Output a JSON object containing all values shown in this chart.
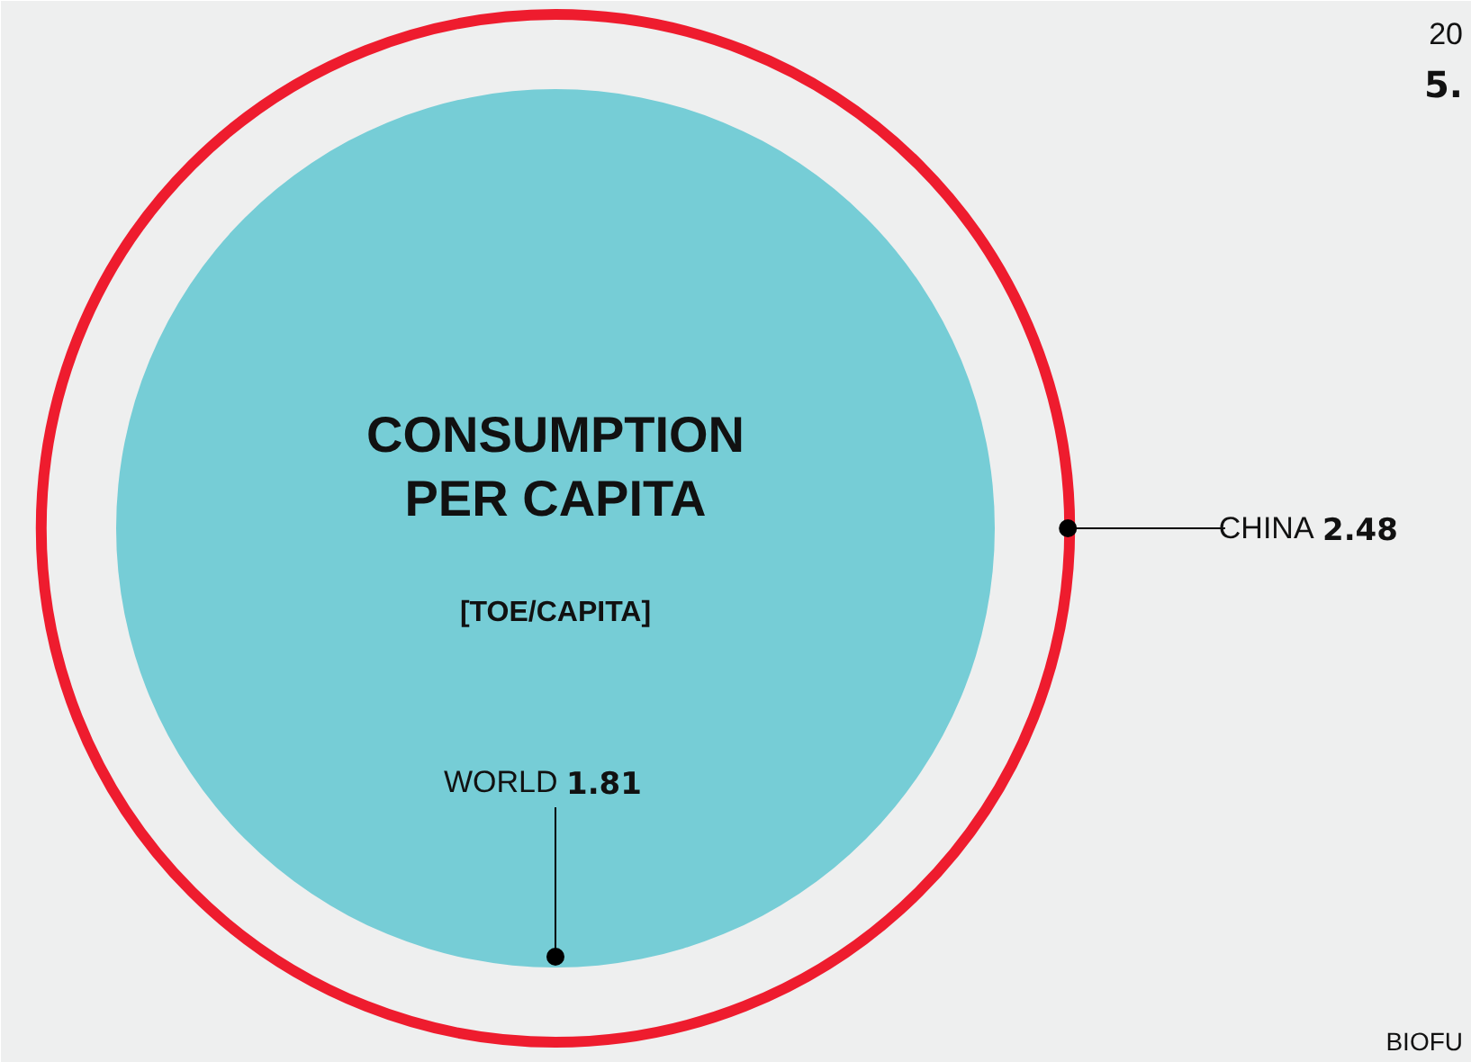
{
  "chart_data": {
    "type": "other",
    "title": "CONSUMPTION PER CAPITA",
    "subtitle": "[TOE/CAPITA]",
    "categories": [
      "WORLD",
      "CHINA"
    ],
    "values": [
      1.81,
      2.48
    ],
    "colors": [
      "#76cdd6",
      "#ee1c2e"
    ],
    "value_labels": [
      "1.81",
      "2.48"
    ],
    "annotations": [
      "20",
      "5.",
      "BIOFU"
    ]
  }
}
